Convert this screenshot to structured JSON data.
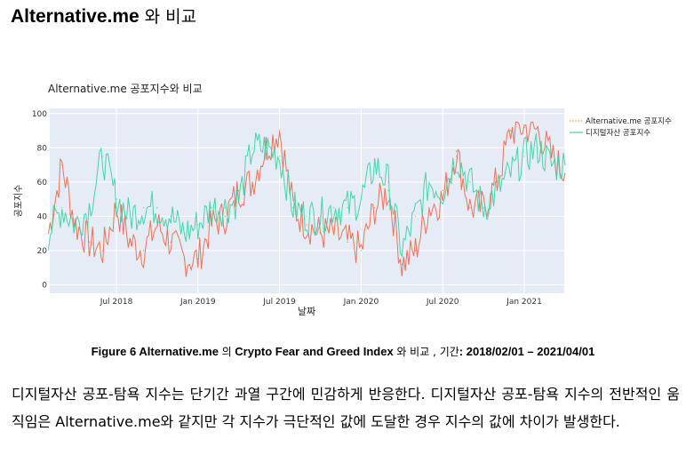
{
  "heading": {
    "latin": "Alternative.me",
    "korean": "와 비교"
  },
  "caption": {
    "prefix": "Figure 6 Alternative.me",
    "p1": "의",
    "index_name": "Crypto Fear and Greed Index",
    "p2": "와 비교 , 기간",
    "range": ": 2018/02/01 – 2021/04/01"
  },
  "paragraph": "디지털자산 공포-탐욕 지수는 단기간 과열 구간에 민감하게 반응한다. 디지털자산 공포-탐욕 지수의 전반적인 움직임은 Alternative.me와 같지만 각 지수가 극단적인 값에 도달한 경우 지수의 값에 차이가 발생한다.",
  "colors": {
    "alt": "#ef6a4f",
    "digital": "#3fd3a3",
    "plot_bg": "#e5ecf6"
  },
  "chart_data": {
    "type": "line",
    "title": "Alternative.me 공포지수와 비교",
    "xlabel": "날짜",
    "ylabel": "공포지수",
    "ylim": [
      -5,
      103
    ],
    "yticks": [
      "0",
      "20",
      "40",
      "60",
      "80",
      "100"
    ],
    "xticks": [
      {
        "label": "Jul 2018",
        "month": 5
      },
      {
        "label": "Jan 2019",
        "month": 11
      },
      {
        "label": "Jul 2019",
        "month": 17
      },
      {
        "label": "Jan 2020",
        "month": 23
      },
      {
        "label": "Jul 2020",
        "month": 29
      },
      {
        "label": "Jan 2021",
        "month": 35
      }
    ],
    "x": [
      "2018-02",
      "2018-03",
      "2018-04",
      "2018-05",
      "2018-06",
      "2018-07",
      "2018-08",
      "2018-09",
      "2018-10",
      "2018-11",
      "2018-12",
      "2019-01",
      "2019-02",
      "2019-03",
      "2019-04",
      "2019-05",
      "2019-06",
      "2019-07",
      "2019-08",
      "2019-09",
      "2019-10",
      "2019-11",
      "2019-12",
      "2020-01",
      "2020-02",
      "2020-03",
      "2020-04",
      "2020-05",
      "2020-06",
      "2020-07",
      "2020-08",
      "2020-09",
      "2020-10",
      "2020-11",
      "2020-12",
      "2021-01",
      "2021-02",
      "2021-03",
      "2021-04"
    ],
    "legend_position": "top-right-outside",
    "grid": true,
    "series": [
      {
        "name": "Alternative.me 공포지수",
        "values": [
          30,
          70,
          35,
          25,
          20,
          45,
          25,
          20,
          35,
          25,
          15,
          15,
          35,
          40,
          55,
          60,
          80,
          90,
          45,
          35,
          30,
          30,
          25,
          20,
          45,
          55,
          12,
          20,
          45,
          50,
          78,
          45,
          45,
          60,
          90,
          92,
          90,
          75,
          65
        ]
      },
      {
        "name": "디지털자산 공포지수",
        "values": [
          30,
          45,
          35,
          45,
          75,
          50,
          40,
          45,
          45,
          40,
          30,
          35,
          45,
          45,
          50,
          80,
          80,
          75,
          45,
          40,
          40,
          45,
          45,
          50,
          70,
          60,
          20,
          40,
          60,
          55,
          75,
          60,
          45,
          55,
          65,
          75,
          80,
          70,
          70
        ]
      }
    ]
  }
}
